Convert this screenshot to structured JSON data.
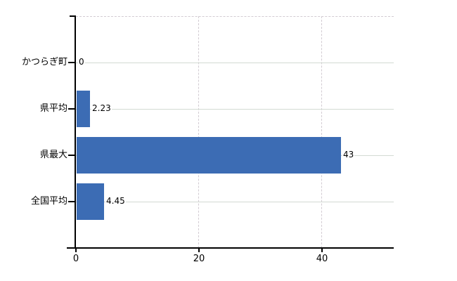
{
  "chart_data": {
    "type": "bar",
    "orientation": "horizontal",
    "title": "",
    "xlabel": "",
    "ylabel": "",
    "categories": [
      "かつらぎ町",
      "県平均",
      "県最大",
      "全国平均"
    ],
    "values": [
      0,
      2.23,
      43,
      4.45
    ],
    "value_labels": [
      "0",
      "2.23",
      "43",
      "4.45"
    ],
    "x_ticks": [
      0,
      20,
      40
    ],
    "x_tick_labels": [
      "0",
      "20",
      "40"
    ],
    "xlim": [
      0,
      51.7
    ],
    "grid": true,
    "legend": false,
    "colors": {
      "bar": "#3c6cb4",
      "axis": "#000000",
      "gridline_horizontal": "#d3dad3",
      "gridline_vertical": "#d2cbd2",
      "text": "#000000",
      "background": "#ffffff"
    }
  }
}
